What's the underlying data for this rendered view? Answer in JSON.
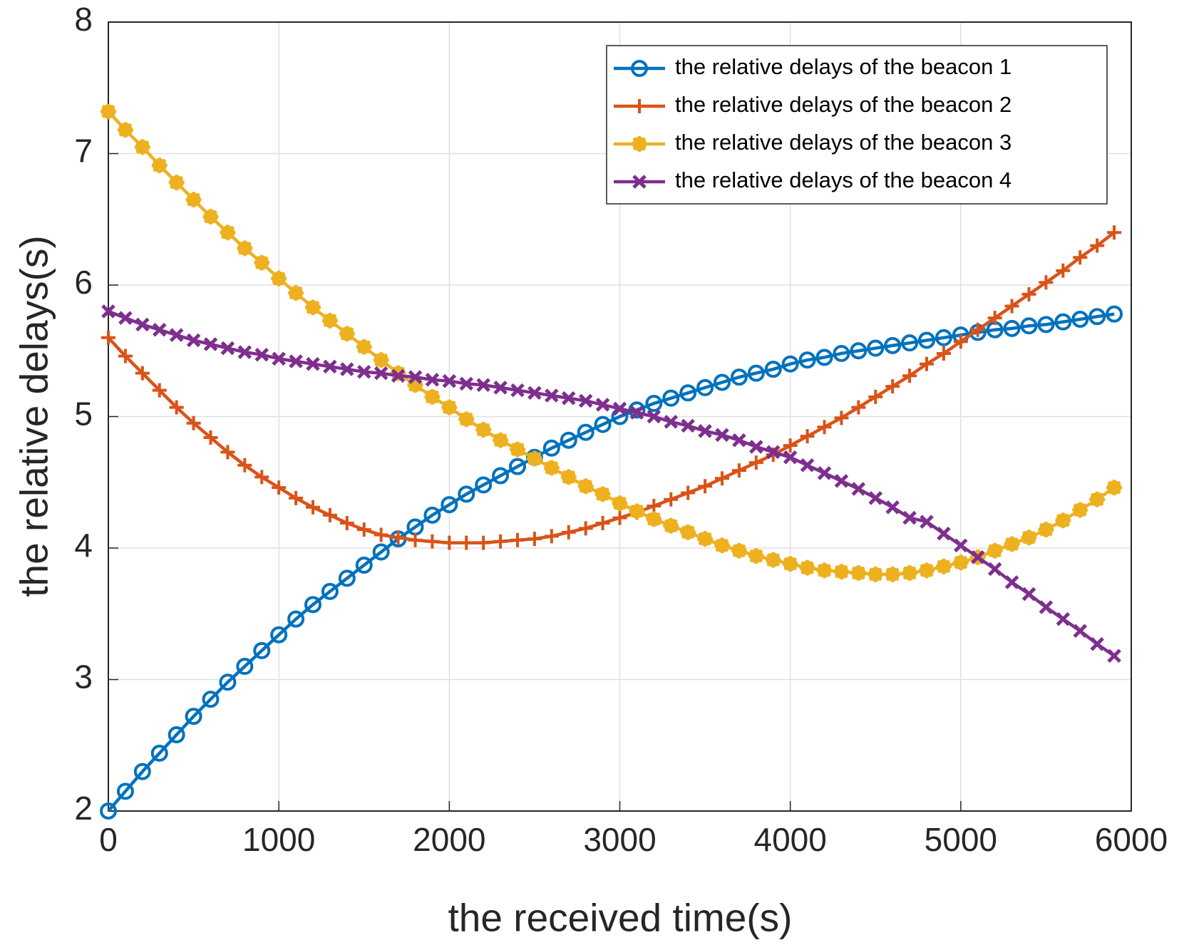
{
  "chart_data": {
    "type": "line",
    "xlabel": "the received time(s)",
    "ylabel": "the relative delays(s)",
    "xlim": [
      0,
      6000
    ],
    "ylim": [
      2,
      8
    ],
    "xticks": [
      0,
      1000,
      2000,
      3000,
      4000,
      5000,
      6000
    ],
    "yticks": [
      2,
      3,
      4,
      5,
      6,
      7,
      8
    ],
    "grid": true,
    "legend": "upper right",
    "x": [
      0,
      100,
      200,
      300,
      400,
      500,
      600,
      700,
      800,
      900,
      1000,
      1100,
      1200,
      1300,
      1400,
      1500,
      1600,
      1700,
      1800,
      1900,
      2000,
      2100,
      2200,
      2300,
      2400,
      2500,
      2600,
      2700,
      2800,
      2900,
      3000,
      3100,
      3200,
      3300,
      3400,
      3500,
      3600,
      3700,
      3800,
      3900,
      4000,
      4100,
      4200,
      4300,
      4400,
      4500,
      4600,
      4700,
      4800,
      4900,
      5000,
      5100,
      5200,
      5300,
      5400,
      5500,
      5600,
      5700,
      5800,
      5900
    ],
    "series": [
      {
        "name": "the relative delays of the beacon 1",
        "color": "#0072bd",
        "marker": "circle",
        "values": [
          2.0,
          2.15,
          2.3,
          2.44,
          2.58,
          2.72,
          2.85,
          2.98,
          3.1,
          3.22,
          3.34,
          3.46,
          3.57,
          3.67,
          3.77,
          3.87,
          3.97,
          4.07,
          4.16,
          4.25,
          4.33,
          4.41,
          4.48,
          4.55,
          4.62,
          4.69,
          4.76,
          4.82,
          4.88,
          4.94,
          5.0,
          5.05,
          5.1,
          5.14,
          5.18,
          5.22,
          5.26,
          5.3,
          5.33,
          5.36,
          5.4,
          5.43,
          5.45,
          5.48,
          5.5,
          5.52,
          5.54,
          5.56,
          5.58,
          5.6,
          5.62,
          5.64,
          5.66,
          5.67,
          5.69,
          5.7,
          5.72,
          5.74,
          5.76,
          5.78
        ]
      },
      {
        "name": "the relative delays of the beacon 2",
        "color": "#d95319",
        "marker": "plus",
        "values": [
          5.6,
          5.46,
          5.33,
          5.2,
          5.07,
          4.95,
          4.84,
          4.73,
          4.63,
          4.54,
          4.46,
          4.38,
          4.31,
          4.25,
          4.19,
          4.14,
          4.1,
          4.08,
          4.06,
          4.05,
          4.04,
          4.04,
          4.04,
          4.05,
          4.06,
          4.07,
          4.09,
          4.12,
          4.15,
          4.19,
          4.23,
          4.27,
          4.32,
          4.37,
          4.42,
          4.47,
          4.53,
          4.59,
          4.65,
          4.71,
          4.78,
          4.85,
          4.92,
          4.99,
          5.07,
          5.15,
          5.23,
          5.31,
          5.4,
          5.48,
          5.57,
          5.66,
          5.75,
          5.84,
          5.93,
          6.02,
          6.11,
          6.21,
          6.3,
          6.4
        ]
      },
      {
        "name": "the relative delays of the beacon 3",
        "color": "#edb120",
        "marker": "asterisk",
        "values": [
          7.32,
          7.18,
          7.05,
          6.91,
          6.78,
          6.65,
          6.52,
          6.4,
          6.28,
          6.17,
          6.05,
          5.94,
          5.83,
          5.73,
          5.63,
          5.53,
          5.43,
          5.33,
          5.24,
          5.15,
          5.07,
          4.98,
          4.9,
          4.82,
          4.75,
          4.68,
          4.61,
          4.54,
          4.47,
          4.41,
          4.34,
          4.28,
          4.22,
          4.17,
          4.12,
          4.07,
          4.02,
          3.98,
          3.94,
          3.91,
          3.88,
          3.85,
          3.83,
          3.82,
          3.81,
          3.8,
          3.8,
          3.81,
          3.83,
          3.86,
          3.89,
          3.93,
          3.98,
          4.03,
          4.08,
          4.14,
          4.21,
          4.29,
          4.37,
          4.46
        ]
      },
      {
        "name": "the relative delays of the beacon 4",
        "color": "#7e2f8e",
        "marker": "x",
        "values": [
          5.8,
          5.75,
          5.7,
          5.66,
          5.62,
          5.58,
          5.55,
          5.52,
          5.49,
          5.47,
          5.44,
          5.42,
          5.4,
          5.38,
          5.36,
          5.34,
          5.33,
          5.31,
          5.3,
          5.28,
          5.27,
          5.25,
          5.24,
          5.22,
          5.2,
          5.18,
          5.16,
          5.14,
          5.12,
          5.09,
          5.06,
          5.03,
          5.0,
          4.96,
          4.93,
          4.89,
          4.86,
          4.82,
          4.77,
          4.73,
          4.69,
          4.63,
          4.57,
          4.51,
          4.45,
          4.38,
          4.31,
          4.23,
          4.2,
          4.11,
          4.02,
          3.93,
          3.84,
          3.74,
          3.65,
          3.55,
          3.46,
          3.37,
          3.27,
          3.18
        ]
      }
    ]
  }
}
